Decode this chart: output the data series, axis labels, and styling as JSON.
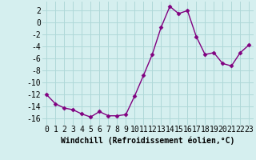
{
  "x": [
    0,
    1,
    2,
    3,
    4,
    5,
    6,
    7,
    8,
    9,
    10,
    11,
    12,
    13,
    14,
    15,
    16,
    17,
    18,
    19,
    20,
    21,
    22,
    23
  ],
  "y": [
    -12,
    -13.5,
    -14.2,
    -14.5,
    -15.2,
    -15.7,
    -14.8,
    -15.5,
    -15.5,
    -15.3,
    -12.2,
    -8.8,
    -5.3,
    -0.8,
    2.7,
    1.5,
    2.0,
    -2.3,
    -5.3,
    -5.0,
    -6.8,
    -7.2,
    -5.0,
    -3.7
  ],
  "line_color": "#800080",
  "marker": "D",
  "marker_size": 2.5,
  "line_width": 1.0,
  "bg_color": "#d5efef",
  "grid_color": "#afd8d8",
  "xlabel": "Windchill (Refroidissement éolien,°C)",
  "xlabel_fontsize": 7,
  "tick_fontsize": 7,
  "ylim": [
    -17,
    3.5
  ],
  "xlim": [
    -0.5,
    23.5
  ],
  "yticks": [
    2,
    0,
    -2,
    -4,
    -6,
    -8,
    -10,
    -12,
    -14,
    -16
  ],
  "xticks": [
    0,
    1,
    2,
    3,
    4,
    5,
    6,
    7,
    8,
    9,
    10,
    11,
    12,
    13,
    14,
    15,
    16,
    17,
    18,
    19,
    20,
    21,
    22,
    23
  ]
}
